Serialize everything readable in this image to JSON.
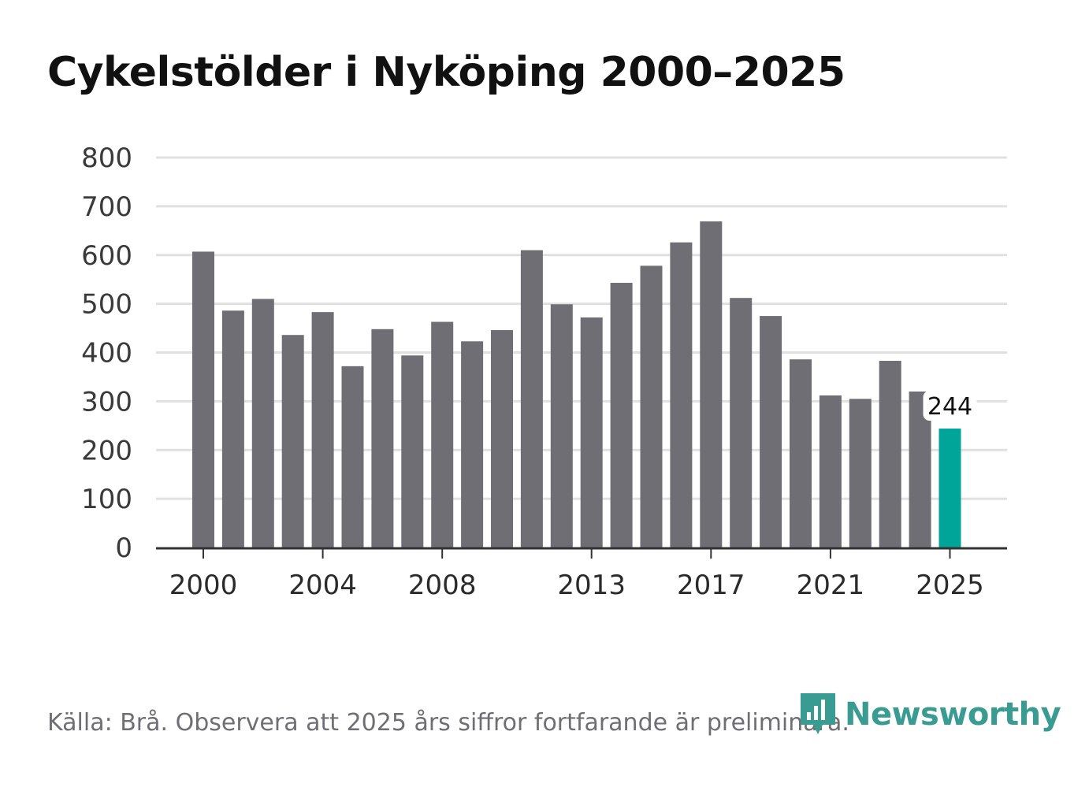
{
  "title": "Cykelstölder i Nyköping 2000–2025",
  "source": "Källa: Brå. Observera att 2025 års siffror fortfarande är preliminära.",
  "brand": {
    "name": "Newsworthy",
    "icon": "bar-chart-badge-icon",
    "color": "#3a9b93"
  },
  "colors": {
    "bar": "#6f6e75",
    "highlight": "#00a59a",
    "grid": "#e0e0e0",
    "axis": "#333333"
  },
  "chart_data": {
    "type": "bar",
    "title": "Cykelstölder i Nyköping 2000–2025",
    "xlabel": "",
    "ylabel": "",
    "categories": [
      "2000",
      "2001",
      "2002",
      "2003",
      "2004",
      "2005",
      "2006",
      "2007",
      "2008",
      "2009",
      "2010",
      "2011",
      "2012",
      "2013",
      "2014",
      "2015",
      "2016",
      "2017",
      "2018",
      "2019",
      "2020",
      "2021",
      "2022",
      "2023",
      "2024",
      "2025"
    ],
    "values": [
      607,
      486,
      510,
      436,
      483,
      372,
      448,
      394,
      463,
      423,
      446,
      610,
      499,
      472,
      543,
      578,
      626,
      669,
      512,
      475,
      386,
      312,
      305,
      383,
      320,
      244
    ],
    "ylim": [
      0,
      800
    ],
    "yticks": [
      0,
      100,
      200,
      300,
      400,
      500,
      600,
      700,
      800
    ],
    "xticks": [
      "2000",
      "2004",
      "2008",
      "2013",
      "2017",
      "2021",
      "2025"
    ],
    "highlight_category": "2025",
    "annotation": {
      "category": "2025",
      "text": "244"
    },
    "grid": true
  }
}
